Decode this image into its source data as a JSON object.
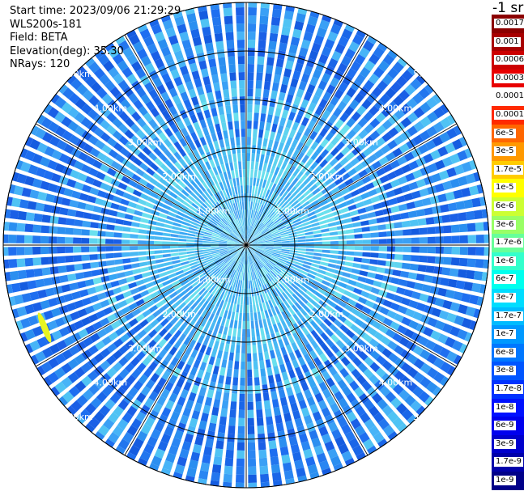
{
  "header": {
    "start_time": "Start time: 2023/09/06 21:29:29",
    "instrument": "WLS200s-181",
    "field": "Field: BETA",
    "elevation": "Elevation(deg): 35.30",
    "nrays": "NRays: 120"
  },
  "colorbar": {
    "unit_label": "-1 sr",
    "labels": [
      "0.0017",
      "0.001",
      "0.0006",
      "0.0003",
      "0.00017",
      "0.0001",
      "6e-5",
      "3e-5",
      "1.7e-5",
      "1e-5",
      "6e-6",
      "3e-6",
      "1.7e-6",
      "1e-6",
      "6e-7",
      "3e-7",
      "1.7e-7",
      "1e-7",
      "6e-8",
      "3e-8",
      "1.7e-8",
      "1e-8",
      "6e-9",
      "3e-9",
      "1.7e-9",
      "1e-9"
    ],
    "colors": [
      "#8b0000",
      "#a80000",
      "#cc0000",
      "#e80000",
      "#ffffff",
      "#ff2a00",
      "#ff6600",
      "#ff9900",
      "#ffcc00",
      "#ffff00",
      "#ccff33",
      "#99ff66",
      "#66ff99",
      "#33ffcc",
      "#00ffee",
      "#00ddff",
      "#00bbff",
      "#0099ff",
      "#0077ff",
      "#0055ff",
      "#0033ff",
      "#0011ff",
      "#0000ee",
      "#0000cc",
      "#0000aa",
      "#000088"
    ]
  },
  "ppi": {
    "range_labels": [
      "1.00km",
      "2.00km",
      "3.00km",
      "4.00km",
      "5.00km"
    ],
    "n_rays": 120
  }
}
